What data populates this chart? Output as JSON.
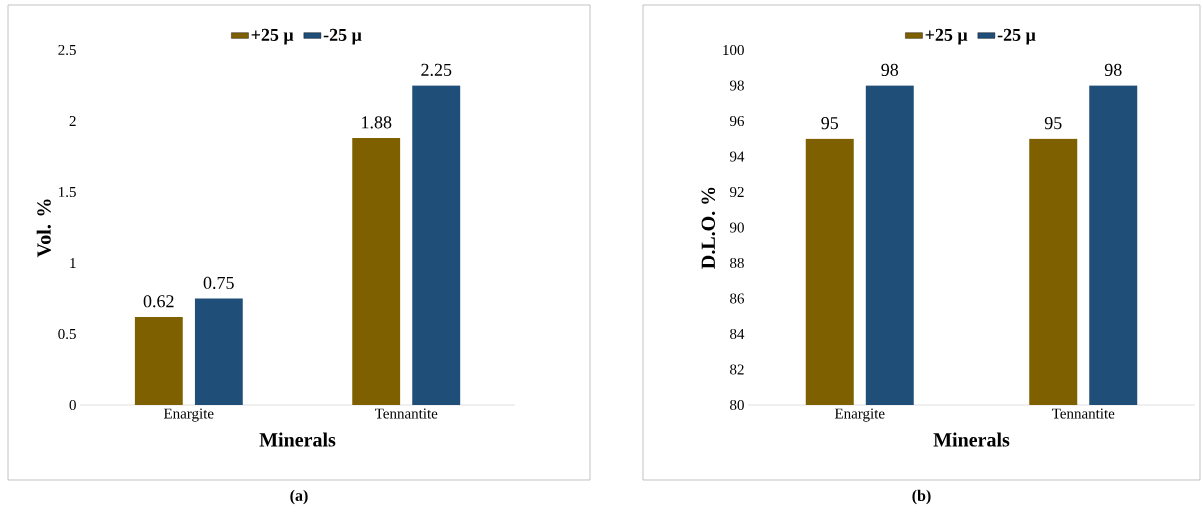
{
  "chart_data": [
    {
      "type": "bar",
      "categories": [
        "Enargite",
        "Tennantite"
      ],
      "series": [
        {
          "name": "+25 μ",
          "color": "#7f6000",
          "values": [
            0.62,
            1.88
          ]
        },
        {
          "name": "-25 μ",
          "color": "#1f4e79",
          "values": [
            0.75,
            2.25
          ]
        }
      ],
      "ylim": [
        0,
        2.5
      ],
      "yticks": [
        0,
        0.5,
        1,
        1.5,
        2,
        2.5
      ],
      "xlabel": "Minerals",
      "ylabel": "Vol. %",
      "data_labels": true,
      "legend": "top",
      "annotations": [
        "(a)"
      ]
    },
    {
      "type": "bar",
      "categories": [
        "Enargite",
        "Tennantite"
      ],
      "series": [
        {
          "name": "+25 μ",
          "color": "#7f6000",
          "values": [
            95,
            95
          ]
        },
        {
          "name": "-25 μ",
          "color": "#1f4e79",
          "values": [
            98,
            98
          ]
        }
      ],
      "ylim": [
        80,
        100
      ],
      "yticks": [
        80,
        82,
        84,
        86,
        88,
        90,
        92,
        94,
        96,
        98,
        100
      ],
      "xlabel": "Minerals",
      "ylabel": "D.L.O. %",
      "data_labels": true,
      "legend": "top",
      "annotations": [
        "(b)"
      ]
    }
  ]
}
